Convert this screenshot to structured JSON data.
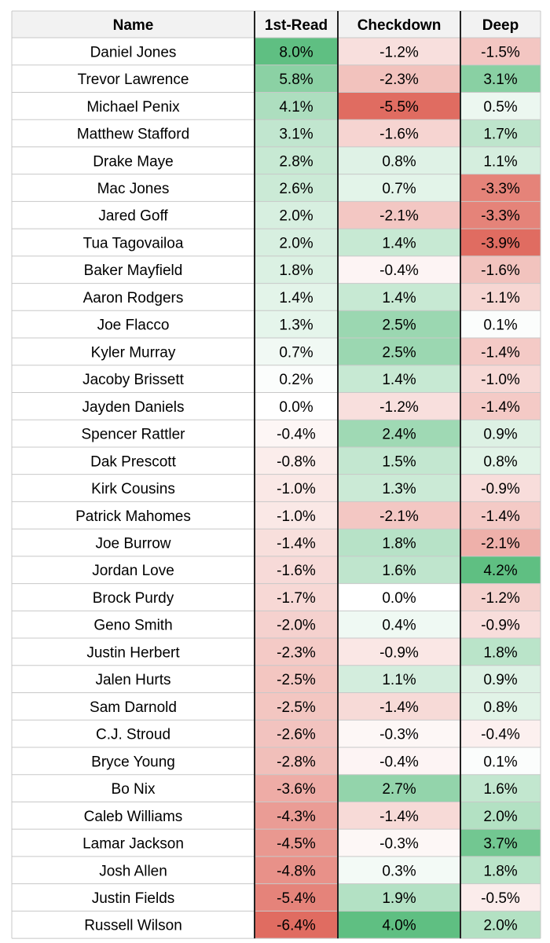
{
  "chart_data": {
    "type": "table",
    "columns": [
      "Name",
      "1st-Read",
      "Checkdown",
      "Deep"
    ],
    "value_suffix": "%",
    "scale_colors": {
      "negative": "#e06c61",
      "zero": "#ffffff",
      "positive": "#5fbf82"
    },
    "rows": [
      {
        "name": "Daniel Jones",
        "values": [
          8.0,
          -1.2,
          -1.5
        ]
      },
      {
        "name": "Trevor Lawrence",
        "values": [
          5.8,
          -2.3,
          3.1
        ]
      },
      {
        "name": "Michael Penix",
        "values": [
          4.1,
          -5.5,
          0.5
        ]
      },
      {
        "name": "Matthew Stafford",
        "values": [
          3.1,
          -1.6,
          1.7
        ]
      },
      {
        "name": "Drake Maye",
        "values": [
          2.8,
          0.8,
          1.1
        ]
      },
      {
        "name": "Mac Jones",
        "values": [
          2.6,
          0.7,
          -3.3
        ]
      },
      {
        "name": "Jared Goff",
        "values": [
          2.0,
          -2.1,
          -3.3
        ]
      },
      {
        "name": "Tua Tagovailoa",
        "values": [
          2.0,
          1.4,
          -3.9
        ]
      },
      {
        "name": "Baker Mayfield",
        "values": [
          1.8,
          -0.4,
          -1.6
        ]
      },
      {
        "name": "Aaron Rodgers",
        "values": [
          1.4,
          1.4,
          -1.1
        ]
      },
      {
        "name": "Joe Flacco",
        "values": [
          1.3,
          2.5,
          0.1
        ]
      },
      {
        "name": "Kyler Murray",
        "values": [
          0.7,
          2.5,
          -1.4
        ]
      },
      {
        "name": "Jacoby Brissett",
        "values": [
          0.2,
          1.4,
          -1.0
        ]
      },
      {
        "name": "Jayden Daniels",
        "values": [
          0.0,
          -1.2,
          -1.4
        ]
      },
      {
        "name": "Spencer Rattler",
        "values": [
          -0.4,
          2.4,
          0.9
        ]
      },
      {
        "name": "Dak Prescott",
        "values": [
          -0.8,
          1.5,
          0.8
        ]
      },
      {
        "name": "Kirk Cousins",
        "values": [
          -1.0,
          1.3,
          -0.9
        ]
      },
      {
        "name": "Patrick Mahomes",
        "values": [
          -1.0,
          -2.1,
          -1.4
        ]
      },
      {
        "name": "Joe Burrow",
        "values": [
          -1.4,
          1.8,
          -2.1
        ]
      },
      {
        "name": "Jordan Love",
        "values": [
          -1.6,
          1.6,
          4.2
        ]
      },
      {
        "name": "Brock Purdy",
        "values": [
          -1.7,
          0.0,
          -1.2
        ]
      },
      {
        "name": "Geno Smith",
        "values": [
          -2.0,
          0.4,
          -0.9
        ]
      },
      {
        "name": "Justin Herbert",
        "values": [
          -2.3,
          -0.9,
          1.8
        ]
      },
      {
        "name": "Jalen Hurts",
        "values": [
          -2.5,
          1.1,
          0.9
        ]
      },
      {
        "name": "Sam Darnold",
        "values": [
          -2.5,
          -1.4,
          0.8
        ]
      },
      {
        "name": "C.J. Stroud",
        "values": [
          -2.6,
          -0.3,
          -0.4
        ]
      },
      {
        "name": "Bryce Young",
        "values": [
          -2.8,
          -0.4,
          0.1
        ]
      },
      {
        "name": "Bo Nix",
        "values": [
          -3.6,
          2.7,
          1.6
        ]
      },
      {
        "name": "Caleb Williams",
        "values": [
          -4.3,
          -1.4,
          2.0
        ]
      },
      {
        "name": "Lamar Jackson",
        "values": [
          -4.5,
          -0.3,
          3.7
        ]
      },
      {
        "name": "Josh Allen",
        "values": [
          -4.8,
          0.3,
          1.8
        ]
      },
      {
        "name": "Justin Fields",
        "values": [
          -5.4,
          1.9,
          -0.5
        ]
      },
      {
        "name": "Russell Wilson",
        "values": [
          -6.4,
          4.0,
          2.0
        ]
      }
    ]
  }
}
